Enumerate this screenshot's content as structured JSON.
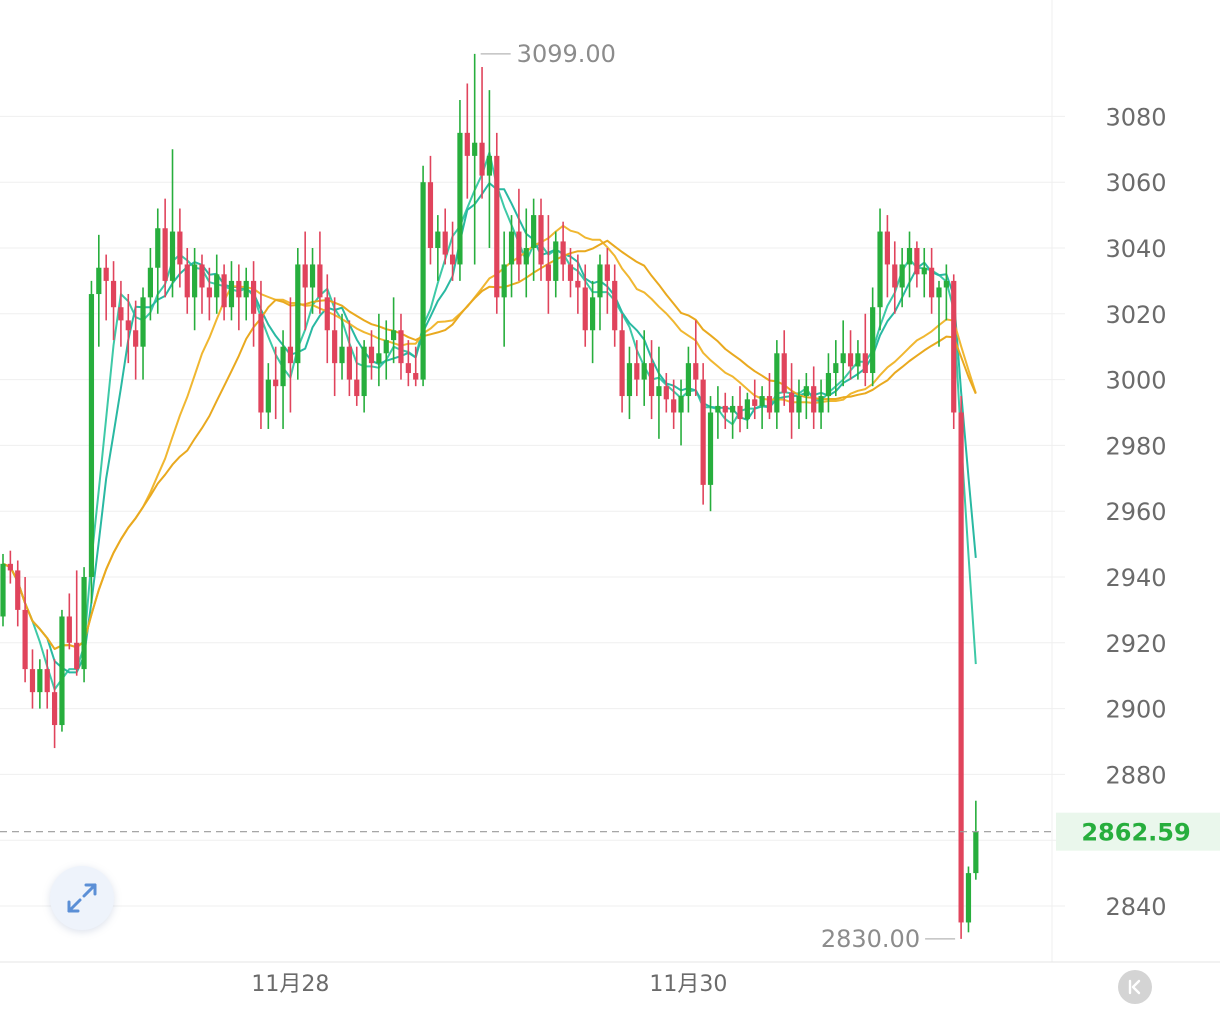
{
  "chart_data": {
    "type": "candlestick",
    "ylim": [
      2825,
      3105
    ],
    "y_ticks": [
      2840,
      2860,
      2880,
      2900,
      2920,
      2940,
      2960,
      2980,
      3000,
      3020,
      3040,
      3060,
      3080
    ],
    "y_tick_labels": [
      "2840",
      "",
      "2880",
      "2900",
      "2920",
      "2940",
      "2960",
      "2980",
      "3000",
      "3020",
      "3040",
      "3060",
      "3080"
    ],
    "x_labels": [
      "11月28",
      "11月30"
    ],
    "x_label_index": [
      39,
      93
    ],
    "high_label": "3099.00",
    "high_value": 3099.0,
    "high_index": 64,
    "low_label": "2830.00",
    "low_value": 2830.0,
    "low_index": 130,
    "last_price_label": "2862.59",
    "last_price": 2862.59,
    "candles": [
      [
        2928,
        2947,
        2925,
        2944
      ],
      [
        2944,
        2948,
        2938,
        2942
      ],
      [
        2942,
        2945,
        2925,
        2930
      ],
      [
        2930,
        2940,
        2908,
        2912
      ],
      [
        2912,
        2918,
        2900,
        2905
      ],
      [
        2905,
        2915,
        2900,
        2912
      ],
      [
        2912,
        2918,
        2900,
        2905
      ],
      [
        2905,
        2915,
        2888,
        2895
      ],
      [
        2895,
        2930,
        2893,
        2928
      ],
      [
        2928,
        2935,
        2918,
        2920
      ],
      [
        2920,
        2942,
        2910,
        2912
      ],
      [
        2912,
        2943,
        2908,
        2940
      ],
      [
        2940,
        3030,
        2932,
        3026
      ],
      [
        3026,
        3044,
        3010,
        3034
      ],
      [
        3034,
        3038,
        3018,
        3030
      ],
      [
        3030,
        3036,
        3012,
        3022
      ],
      [
        3022,
        3030,
        3010,
        3018
      ],
      [
        3018,
        3026,
        3005,
        3015
      ],
      [
        3015,
        3024,
        3000,
        3010
      ],
      [
        3010,
        3028,
        3000,
        3025
      ],
      [
        3025,
        3040,
        3018,
        3034
      ],
      [
        3034,
        3052,
        3020,
        3046
      ],
      [
        3046,
        3055,
        3025,
        3030
      ],
      [
        3030,
        3070,
        3025,
        3045
      ],
      [
        3045,
        3052,
        3028,
        3035
      ],
      [
        3035,
        3040,
        3020,
        3025
      ],
      [
        3025,
        3040,
        3015,
        3035
      ],
      [
        3035,
        3038,
        3020,
        3028
      ],
      [
        3028,
        3034,
        3018,
        3025
      ],
      [
        3025,
        3038,
        3020,
        3032
      ],
      [
        3032,
        3035,
        3018,
        3022
      ],
      [
        3022,
        3036,
        3018,
        3030
      ],
      [
        3030,
        3035,
        3015,
        3025
      ],
      [
        3025,
        3034,
        3018,
        3030
      ],
      [
        3030,
        3036,
        3010,
        3020
      ],
      [
        3020,
        3030,
        2985,
        2990
      ],
      [
        2990,
        3005,
        2985,
        3000
      ],
      [
        3000,
        3010,
        2988,
        2998
      ],
      [
        2998,
        3015,
        2985,
        3010
      ],
      [
        3010,
        3025,
        2990,
        3005
      ],
      [
        3005,
        3040,
        3000,
        3035
      ],
      [
        3035,
        3045,
        3015,
        3028
      ],
      [
        3028,
        3040,
        3020,
        3035
      ],
      [
        3035,
        3045,
        3020,
        3025
      ],
      [
        3025,
        3032,
        3005,
        3015
      ],
      [
        3015,
        3025,
        2995,
        3005
      ],
      [
        3005,
        3020,
        3000,
        3010
      ],
      [
        3010,
        3018,
        2995,
        3000
      ],
      [
        3000,
        3010,
        2992,
        2995
      ],
      [
        2995,
        3012,
        2990,
        3010
      ],
      [
        3010,
        3015,
        3000,
        3005
      ],
      [
        3005,
        3020,
        2998,
        3008
      ],
      [
        3008,
        3018,
        3000,
        3012
      ],
      [
        3012,
        3025,
        3005,
        3015
      ],
      [
        3015,
        3020,
        3000,
        3005
      ],
      [
        3005,
        3012,
        2998,
        3002
      ],
      [
        3002,
        3010,
        2998,
        3000
      ],
      [
        3000,
        3065,
        2998,
        3060
      ],
      [
        3060,
        3068,
        3035,
        3040
      ],
      [
        3040,
        3050,
        3030,
        3045
      ],
      [
        3045,
        3052,
        3035,
        3038
      ],
      [
        3038,
        3048,
        3030,
        3035
      ],
      [
        3035,
        3085,
        3030,
        3075
      ],
      [
        3075,
        3090,
        3055,
        3068
      ],
      [
        3068,
        3099,
        3035,
        3072
      ],
      [
        3072,
        3095,
        3055,
        3062
      ],
      [
        3062,
        3088,
        3040,
        3068
      ],
      [
        3068,
        3075,
        3020,
        3025
      ],
      [
        3025,
        3045,
        3010,
        3035
      ],
      [
        3035,
        3050,
        3025,
        3045
      ],
      [
        3045,
        3058,
        3030,
        3035
      ],
      [
        3035,
        3052,
        3025,
        3040
      ],
      [
        3040,
        3055,
        3030,
        3050
      ],
      [
        3050,
        3055,
        3030,
        3035
      ],
      [
        3035,
        3050,
        3020,
        3030
      ],
      [
        3030,
        3045,
        3025,
        3042
      ],
      [
        3042,
        3048,
        3030,
        3035
      ],
      [
        3035,
        3040,
        3025,
        3030
      ],
      [
        3030,
        3038,
        3020,
        3028
      ],
      [
        3028,
        3035,
        3010,
        3015
      ],
      [
        3015,
        3030,
        3005,
        3025
      ],
      [
        3025,
        3038,
        3015,
        3035
      ],
      [
        3035,
        3040,
        3020,
        3030
      ],
      [
        3030,
        3035,
        3010,
        3015
      ],
      [
        3015,
        3020,
        2990,
        2995
      ],
      [
        2995,
        3010,
        2988,
        3005
      ],
      [
        3005,
        3012,
        2995,
        3000
      ],
      [
        3000,
        3015,
        2992,
        3005
      ],
      [
        3005,
        3012,
        2988,
        2995
      ],
      [
        2995,
        3010,
        2982,
        2998
      ],
      [
        2998,
        3002,
        2990,
        2994
      ],
      [
        2994,
        3000,
        2985,
        2990
      ],
      [
        2990,
        3000,
        2980,
        2995
      ],
      [
        2995,
        3010,
        2990,
        3005
      ],
      [
        3005,
        3018,
        2995,
        3000
      ],
      [
        3000,
        3005,
        2962,
        2968
      ],
      [
        2968,
        2995,
        2960,
        2990
      ],
      [
        2990,
        2998,
        2982,
        2992
      ],
      [
        2992,
        2996,
        2985,
        2990
      ],
      [
        2990,
        2995,
        2982,
        2992
      ],
      [
        2992,
        2998,
        2984,
        2988
      ],
      [
        2988,
        2996,
        2985,
        2994
      ],
      [
        2994,
        3000,
        2988,
        2992
      ],
      [
        2992,
        2998,
        2985,
        2995
      ],
      [
        2995,
        3002,
        2988,
        2990
      ],
      [
        2990,
        3012,
        2985,
        3008
      ],
      [
        3008,
        3015,
        2992,
        2996
      ],
      [
        2996,
        3005,
        2982,
        2990
      ],
      [
        2990,
        3000,
        2985,
        2995
      ],
      [
        2995,
        3002,
        2988,
        2998
      ],
      [
        2998,
        3004,
        2985,
        2990
      ],
      [
        2990,
        3000,
        2985,
        2995
      ],
      [
        2995,
        3008,
        2990,
        3002
      ],
      [
        3002,
        3012,
        2995,
        3005
      ],
      [
        3005,
        3018,
        2998,
        3008
      ],
      [
        3008,
        3015,
        3000,
        3004
      ],
      [
        3004,
        3012,
        3000,
        3008
      ],
      [
        3008,
        3020,
        2998,
        3002
      ],
      [
        3002,
        3028,
        2998,
        3022
      ],
      [
        3022,
        3052,
        3015,
        3045
      ],
      [
        3045,
        3050,
        3025,
        3035
      ],
      [
        3035,
        3042,
        3020,
        3028
      ],
      [
        3028,
        3040,
        3022,
        3035
      ],
      [
        3035,
        3045,
        3025,
        3040
      ],
      [
        3040,
        3042,
        3028,
        3032
      ],
      [
        3032,
        3040,
        3025,
        3034
      ],
      [
        3034,
        3040,
        3020,
        3025
      ],
      [
        3025,
        3030,
        3010,
        3028
      ],
      [
        3028,
        3035,
        3018,
        3030
      ],
      [
        3030,
        3032,
        2985,
        2990
      ],
      [
        2990,
        2995,
        2830,
        2835
      ],
      [
        2835,
        2852,
        2832,
        2850
      ],
      [
        2850,
        2872,
        2848,
        2862.59
      ]
    ],
    "series": [
      {
        "name": "",
        "period": 5,
        "color": "#3ec9a7"
      },
      {
        "name": "",
        "period": 7,
        "color": "#29b9a2"
      },
      {
        "name": "",
        "period": 20,
        "color": "#f0b731"
      },
      {
        "name": "",
        "period": 26,
        "color": "#e9a91f"
      }
    ]
  },
  "colors": {
    "up": "#27ae3d",
    "down": "#e0445c",
    "grid": "#efefef",
    "axis_text": "#6b6b6b",
    "last_price_text": "#27ae3d",
    "last_price_bg": "#eaf7ec",
    "dashed_line": "#9a9a9a"
  },
  "icons": {
    "expand": "expand-arrows-icon",
    "scroll_to_latest": "double-chevron-left-icon"
  }
}
